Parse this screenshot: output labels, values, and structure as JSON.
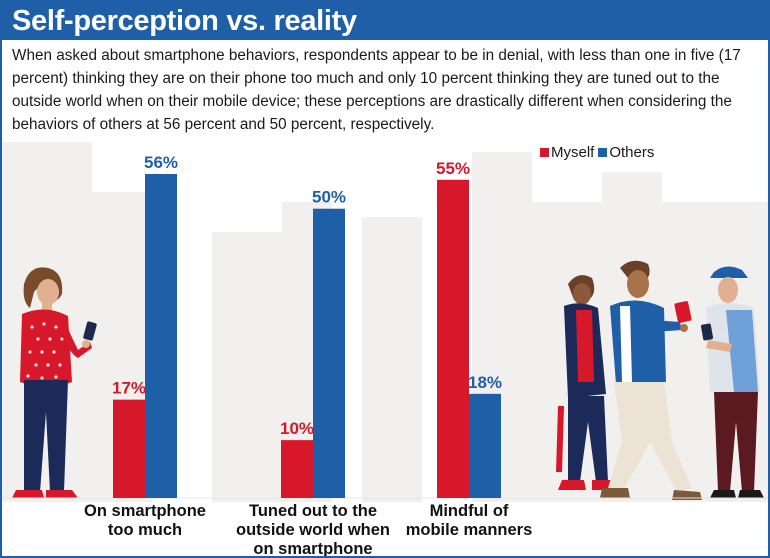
{
  "header": {
    "title": "Self-perception vs. reality",
    "subtitle": "When asked about smartphone behaviors, respondents appear to be in denial, with less than one in five (17 percent) thinking they are on their phone too much and only 10 percent thinking they are tuned out to the outside world when on their mobile device; these perceptions are drastically different when considering the behaviors of others at 56 percent and 50 percent, respectively."
  },
  "colors": {
    "accent": "#1f5fa8",
    "myself": "#d7182a",
    "others": "#1f5fa8",
    "skyline": "#f0efed"
  },
  "legend": {
    "myself_label": "Myself",
    "others_label": "Others"
  },
  "chart_data": {
    "type": "bar",
    "title": "",
    "xlabel": "",
    "ylabel": "",
    "ylim": [
      0,
      60
    ],
    "grid": false,
    "legend_position": "top-right",
    "categories": [
      "On smartphone too much",
      "Tuned out to the outside world when on smartphone",
      "Mindful of mobile manners"
    ],
    "category_lines": [
      [
        "On smartphone",
        "too much"
      ],
      [
        "Tuned out to the",
        "outside world when",
        "on smartphone"
      ],
      [
        "Mindful of",
        "mobile manners"
      ]
    ],
    "series": [
      {
        "name": "Myself",
        "values": [
          17,
          10,
          55
        ],
        "labels": [
          "17%",
          "10%",
          "55%"
        ]
      },
      {
        "name": "Others",
        "values": [
          56,
          50,
          18
        ],
        "labels": [
          "56%",
          "50%",
          "18%"
        ]
      }
    ]
  },
  "illustrations": {
    "left": "woman-with-phone-illustration",
    "right": "three-people-with-phones-illustration"
  }
}
